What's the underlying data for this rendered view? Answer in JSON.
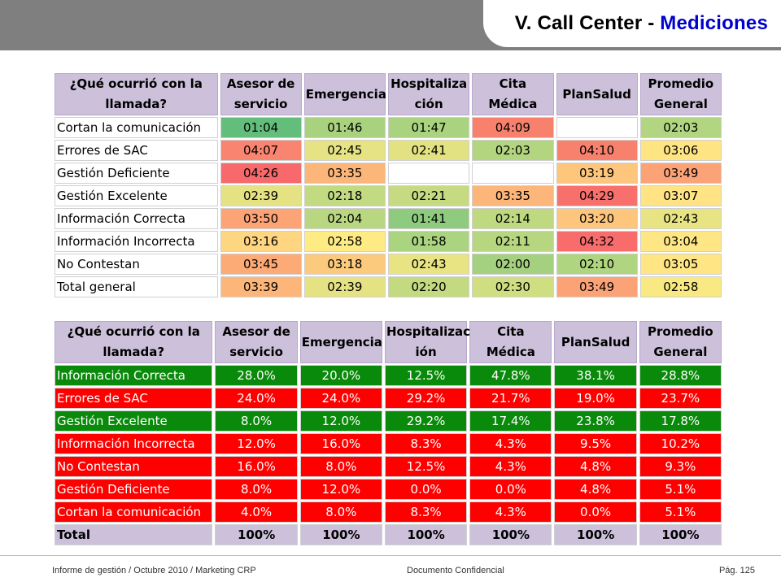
{
  "header": {
    "title_prefix": "V. Call Center - ",
    "title_accent": "Mediciones",
    "accent_color": "#0000cc",
    "bar_color": "#7f7f7f"
  },
  "times_table": {
    "headers": [
      "¿Qué ocurrió con la llamada?",
      "Asesor de servicio",
      "Emergencia",
      "Hospitaliza ción",
      "Cita Médica",
      "PlanSalud",
      "Promedio General"
    ],
    "rows": [
      {
        "label": "Cortan la comunicación",
        "values": [
          "01:04",
          "01:46",
          "01:47",
          "04:09",
          "",
          "02:03"
        ]
      },
      {
        "label": "Errores de SAC",
        "values": [
          "04:07",
          "02:45",
          "02:41",
          "02:03",
          "04:10",
          "03:06"
        ]
      },
      {
        "label": "Gestión Deficiente",
        "values": [
          "04:26",
          "03:35",
          "",
          "",
          "03:19",
          "03:49"
        ]
      },
      {
        "label": "Gestión Excelente",
        "values": [
          "02:39",
          "02:18",
          "02:21",
          "03:35",
          "04:29",
          "03:07"
        ]
      },
      {
        "label": "Información Correcta",
        "values": [
          "03:50",
          "02:04",
          "01:41",
          "02:14",
          "03:20",
          "02:43"
        ]
      },
      {
        "label": "Información Incorrecta",
        "values": [
          "03:16",
          "02:58",
          "01:58",
          "02:11",
          "04:32",
          "03:04"
        ]
      },
      {
        "label": "No Contestan",
        "values": [
          "03:45",
          "03:18",
          "02:43",
          "02:00",
          "02:10",
          "03:05"
        ]
      },
      {
        "label": "Total general",
        "values": [
          "03:39",
          "02:39",
          "02:20",
          "02:30",
          "03:49",
          "02:58"
        ]
      }
    ],
    "heat_colors": [
      [
        "#63be7b",
        "#a9d27f",
        "#aad380",
        "#f8816d",
        "#ffffff",
        "#b1d580"
      ],
      [
        "#f98470",
        "#e5e383",
        "#e2e282",
        "#b3d580",
        "#f8816d",
        "#ffe484"
      ],
      [
        "#f8696b",
        "#fcb679",
        "#ffffff",
        "#ffffff",
        "#fdc67c",
        "#fba377"
      ],
      [
        "#e5e283",
        "#c2da81",
        "#c6db81",
        "#fcb679",
        "#f8706c",
        "#ffe384"
      ],
      [
        "#fca476",
        "#b8d780",
        "#8fcb7e",
        "#bfd981",
        "#fdc67c",
        "#e8e483"
      ],
      [
        "#fed580",
        "#ffeb84",
        "#abd480",
        "#b6d680",
        "#f86d6c",
        "#ffe684"
      ],
      [
        "#fcab77",
        "#fcca7d",
        "#e8e483",
        "#a4d17f",
        "#b0d580",
        "#ffe584"
      ],
      [
        "#fcb679",
        "#e5e283",
        "#c3da81",
        "#d0de82",
        "#fba377",
        "#f8e983"
      ]
    ]
  },
  "pct_table": {
    "headers": [
      "¿Qué ocurrió con la llamada?",
      "Asesor de servicio",
      "Emergencia",
      "Hospitalizac ión",
      "Cita Médica",
      "PlanSalud",
      "Promedio General"
    ],
    "rows": [
      {
        "label": "Información Correcta",
        "tone": "green",
        "values": [
          "28.0%",
          "20.0%",
          "12.5%",
          "47.8%",
          "38.1%",
          "28.8%"
        ]
      },
      {
        "label": "Errores de SAC",
        "tone": "red",
        "values": [
          "24.0%",
          "24.0%",
          "29.2%",
          "21.7%",
          "19.0%",
          "23.7%"
        ]
      },
      {
        "label": "Gestión Excelente",
        "tone": "green",
        "values": [
          "8.0%",
          "12.0%",
          "29.2%",
          "17.4%",
          "23.8%",
          "17.8%"
        ]
      },
      {
        "label": "Información Incorrecta",
        "tone": "red",
        "values": [
          "12.0%",
          "16.0%",
          "8.3%",
          "4.3%",
          "9.5%",
          "10.2%"
        ]
      },
      {
        "label": "No Contestan",
        "tone": "red",
        "values": [
          "16.0%",
          "8.0%",
          "12.5%",
          "4.3%",
          "4.8%",
          "9.3%"
        ]
      },
      {
        "label": "Gestión Deficiente",
        "tone": "red",
        "values": [
          "8.0%",
          "12.0%",
          "0.0%",
          "0.0%",
          "4.8%",
          "5.1%"
        ]
      },
      {
        "label": "Cortan la comunicación",
        "tone": "red",
        "values": [
          "4.0%",
          "8.0%",
          "8.3%",
          "4.3%",
          "0.0%",
          "5.1%"
        ]
      }
    ],
    "total": {
      "label": "Total",
      "values": [
        "100%",
        "100%",
        "100%",
        "100%",
        "100%",
        "100%"
      ]
    }
  },
  "footer": {
    "left": "Informe de gestión / Octubre 2010 / Marketing CRP",
    "center": "Documento Confidencial",
    "right": "Pág. 125"
  }
}
